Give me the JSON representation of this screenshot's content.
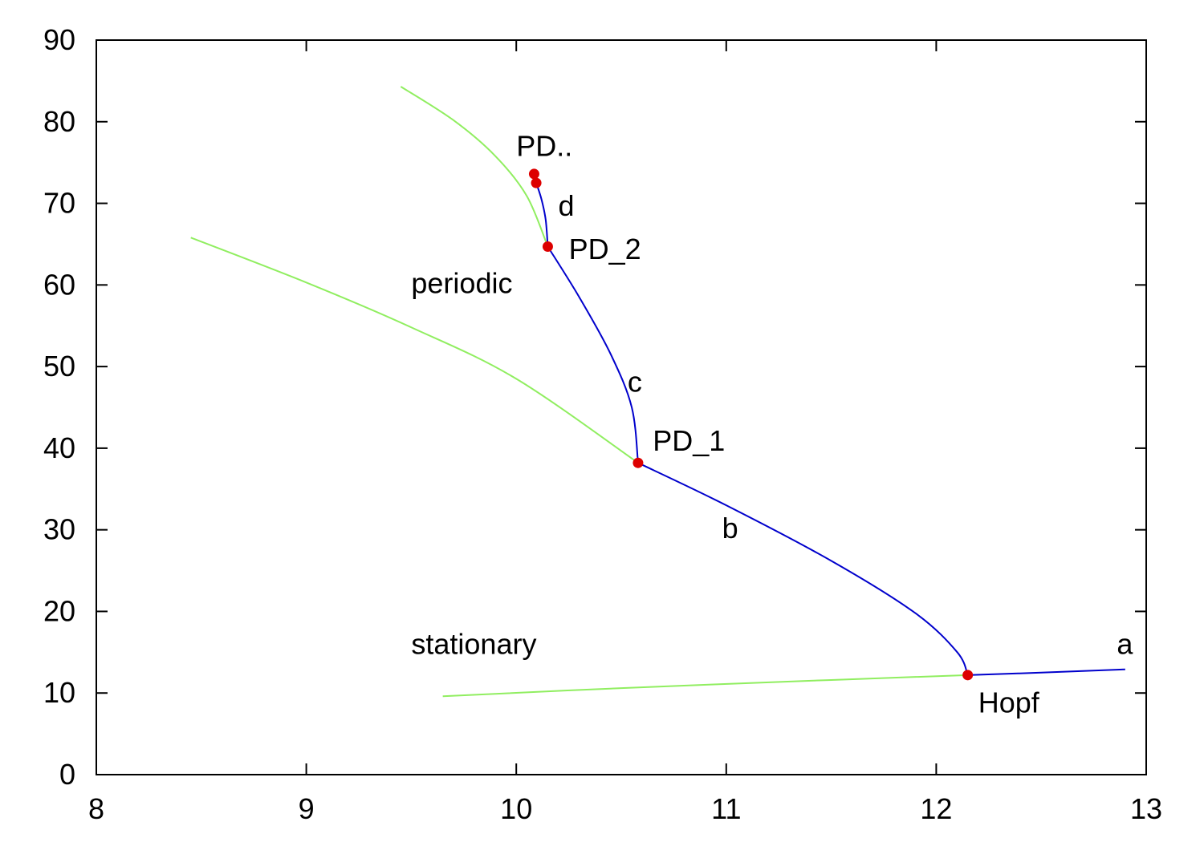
{
  "chart_data": {
    "type": "line",
    "title": "",
    "xlabel": "",
    "ylabel": "",
    "xlim": [
      8,
      13
    ],
    "ylim": [
      0,
      90
    ],
    "x_ticks": [
      "8",
      "9",
      "10",
      "11",
      "12",
      "13"
    ],
    "y_ticks": [
      "0",
      "10",
      "20",
      "30",
      "40",
      "50",
      "60",
      "70",
      "80",
      "90"
    ],
    "grid": false,
    "legend": "none",
    "colors": {
      "green": "#90ee60",
      "blue": "#0000cc",
      "point": "#dd0000"
    },
    "series": [
      {
        "color": "green",
        "x": [
          9.65,
          10.5,
          11.5,
          12.15
        ],
        "y": [
          9.6,
          10.6,
          11.6,
          12.2
        ]
      },
      {
        "color": "green",
        "x": [
          8.45,
          9.0,
          9.5,
          10.0,
          10.58
        ],
        "y": [
          65.8,
          60.3,
          54.8,
          48.5,
          38.2
        ]
      },
      {
        "color": "green",
        "x": [
          9.45,
          9.7,
          9.9,
          10.05,
          10.15
        ],
        "y": [
          84.3,
          80.2,
          75.8,
          70.9,
          64.7
        ]
      },
      {
        "color": "blue",
        "x": [
          12.15,
          12.5,
          12.9
        ],
        "y": [
          12.2,
          12.5,
          12.9
        ]
      },
      {
        "color": "blue",
        "x": [
          10.58,
          11.0,
          11.5,
          11.9,
          12.1,
          12.15
        ],
        "y": [
          38.2,
          33.0,
          26.2,
          19.8,
          15.0,
          12.2
        ]
      },
      {
        "color": "blue",
        "x": [
          10.15,
          10.3,
          10.45,
          10.55,
          10.58
        ],
        "y": [
          64.7,
          58.5,
          51.5,
          45.0,
          38.2
        ]
      },
      {
        "color": "blue",
        "x": [
          10.095,
          10.12,
          10.14,
          10.15
        ],
        "y": [
          72.5,
          70.5,
          68.0,
          64.7
        ]
      }
    ],
    "points": [
      {
        "x": 12.15,
        "y": 12.2
      },
      {
        "x": 10.58,
        "y": 38.2
      },
      {
        "x": 10.15,
        "y": 64.7
      },
      {
        "x": 10.095,
        "y": 72.5
      },
      {
        "x": 10.085,
        "y": 73.6
      }
    ],
    "annotations": [
      {
        "text": "PD..",
        "x": 10.0,
        "y": 75.8
      },
      {
        "text": "d",
        "x": 10.2,
        "y": 68.5
      },
      {
        "text": "PD_2",
        "x": 10.25,
        "y": 63.2
      },
      {
        "text": "periodic",
        "x": 9.5,
        "y": 59.0
      },
      {
        "text": "c",
        "x": 10.53,
        "y": 46.9
      },
      {
        "text": "PD_1",
        "x": 10.65,
        "y": 39.7
      },
      {
        "text": "b",
        "x": 10.98,
        "y": 29.0
      },
      {
        "text": "stationary",
        "x": 9.5,
        "y": 14.8
      },
      {
        "text": "a",
        "x": 12.86,
        "y": 14.8
      },
      {
        "text": "Hopf",
        "x": 12.2,
        "y": 7.6
      }
    ]
  }
}
